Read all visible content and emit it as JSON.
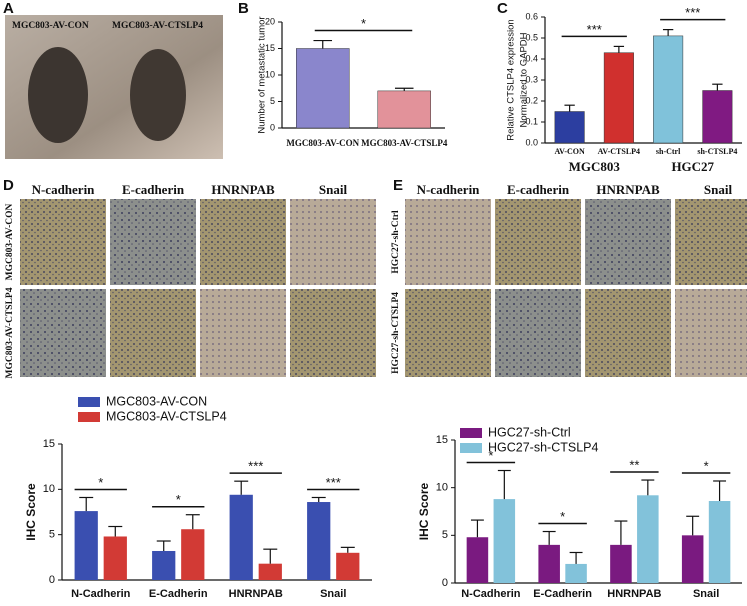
{
  "panels": {
    "a": {
      "letter": "A",
      "labels": [
        "MGC803-AV-CON",
        "MGC803-AV-CTSLP4"
      ]
    },
    "b": {
      "letter": "B"
    },
    "c": {
      "letter": "C"
    },
    "d": {
      "letter": "D",
      "columns": [
        "N-cadherin",
        "E-cadherin",
        "HNRNPAB",
        "Snail"
      ],
      "rows": [
        "MGC803-AV-CON",
        "MGC803-AV-CTSLP4"
      ]
    },
    "e": {
      "letter": "E",
      "columns": [
        "N-cadherin",
        "E-cadherin",
        "HNRNPAB",
        "Snail"
      ],
      "rows": [
        "HGC27-sh-Ctrl",
        "HGC27-sh-CTSLP4"
      ]
    }
  },
  "chart_data": [
    {
      "type": "bar",
      "ylabel": [
        "Number of metastatic tumor"
      ],
      "categories": [
        "MGC803-AV-CON",
        "MGC803-AV-CTSLP4"
      ],
      "values": [
        15,
        7
      ],
      "errors": [
        1.5,
        0.5
      ],
      "colors": [
        "#8a86cc",
        "#e2929a"
      ],
      "ylim": [
        0,
        20
      ],
      "yticks": [
        0,
        5,
        10,
        15,
        20
      ],
      "significance": [
        "*"
      ]
    },
    {
      "type": "bar",
      "ylabel": [
        "Relative CTSLP4 expression",
        "Normalized to GAPDH"
      ],
      "categories": [
        "AV-CON",
        "AV-CTSLP4",
        "sh-Ctrl",
        "sh-CTSLP4"
      ],
      "groups": [
        "MGC803",
        "HGC27"
      ],
      "values": [
        0.15,
        0.43,
        0.51,
        0.25
      ],
      "errors": [
        0.03,
        0.03,
        0.03,
        0.03
      ],
      "colors": [
        "#2c3ea0",
        "#d0302e",
        "#80c2da",
        "#801a82"
      ],
      "ylim": [
        0,
        0.6
      ],
      "yticks": [
        {
          "value": 0,
          "label": "0.0"
        },
        0.1,
        0.2,
        0.3,
        0.4,
        0.5,
        0.6
      ],
      "significance": [
        "***",
        "***"
      ]
    },
    {
      "type": "grouped-bar",
      "ylabel": [
        "IHC Score"
      ],
      "categories": [
        "N-Cadherin",
        "E-Cadherin",
        "HNRNPAB",
        "Snail"
      ],
      "series": [
        {
          "name": "MGC803-AV-CON",
          "color": "#3a4fb0",
          "values": [
            7.6,
            3.2,
            9.4,
            8.6
          ],
          "errors": [
            1.5,
            1.1,
            1.5,
            0.5
          ]
        },
        {
          "name": "MGC803-AV-CTSLP4",
          "color": "#d23a35",
          "values": [
            4.8,
            5.6,
            1.8,
            3.0
          ],
          "errors": [
            1.1,
            1.6,
            1.6,
            0.6
          ]
        }
      ],
      "ylim": [
        0,
        15
      ],
      "yticks": [
        0,
        5,
        10,
        15
      ],
      "significance": [
        "*",
        "*",
        "***",
        "***"
      ]
    },
    {
      "type": "grouped-bar",
      "ylabel": [
        "IHC Score"
      ],
      "categories": [
        "N-Cadherin",
        "E-Cadherin",
        "HNRNPAB",
        "Snail"
      ],
      "series": [
        {
          "name": "HGC27-sh-Ctrl",
          "color": "#7a1a80",
          "values": [
            4.8,
            4.0,
            4.0,
            5.0
          ],
          "errors": [
            1.8,
            1.4,
            2.5,
            2.0
          ]
        },
        {
          "name": "HGC27-sh-CTSLP4",
          "color": "#82c2da",
          "values": [
            8.8,
            2.0,
            9.2,
            8.6
          ],
          "errors": [
            3.0,
            1.2,
            1.6,
            2.1
          ]
        }
      ],
      "ylim": [
        0,
        15
      ],
      "yticks": [
        0,
        5,
        10,
        15
      ],
      "significance": [
        "*",
        "*",
        "**",
        "*"
      ]
    }
  ]
}
